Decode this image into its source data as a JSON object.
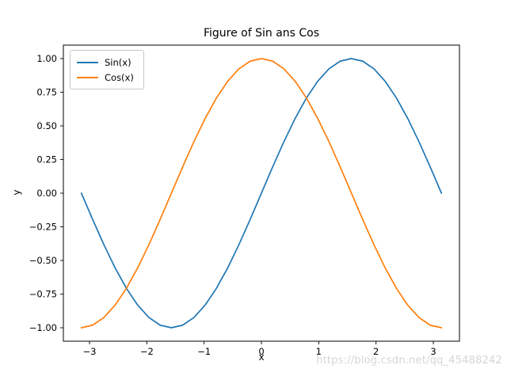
{
  "figure": {
    "title": "Figure of Sin ans Cos",
    "xlabel": "x",
    "ylabel": "y",
    "watermark": "https://blog.csdn.net/qq_45488242"
  },
  "chart_data": {
    "type": "line",
    "title": "Figure of Sin ans Cos",
    "xlabel": "x",
    "ylabel": "y",
    "xlim": [
      -3.456,
      3.456
    ],
    "ylim": [
      -1.1,
      1.1
    ],
    "x_ticks": [
      -3,
      -2,
      -1,
      0,
      1,
      2,
      3
    ],
    "y_ticks": [
      -1.0,
      -0.75,
      -0.5,
      -0.25,
      0.0,
      0.25,
      0.5,
      0.75,
      1.0
    ],
    "grid": false,
    "legend_position": "upper left",
    "x": [
      -3.1416,
      -2.9452,
      -2.7489,
      -2.5525,
      -2.3562,
      -2.1598,
      -1.9635,
      -1.7671,
      -1.5708,
      -1.3744,
      -1.1781,
      -0.9817,
      -0.7854,
      -0.589,
      -0.3927,
      -0.1963,
      0,
      0.1963,
      0.3927,
      0.589,
      0.7854,
      0.9817,
      1.1781,
      1.3744,
      1.5708,
      1.7671,
      1.9635,
      2.1598,
      2.3562,
      2.5525,
      2.7489,
      2.9452,
      3.1416
    ],
    "series": [
      {
        "name": "Sin(x)",
        "color": "#1f77b4",
        "values": [
          0,
          -0.1951,
          -0.3827,
          -0.5556,
          -0.7071,
          -0.8315,
          -0.9239,
          -0.9808,
          -1,
          -0.9808,
          -0.9239,
          -0.8315,
          -0.7071,
          -0.5556,
          -0.3827,
          -0.1951,
          0,
          0.1951,
          0.3827,
          0.5556,
          0.7071,
          0.8315,
          0.9239,
          0.9808,
          1,
          0.9808,
          0.9239,
          0.8315,
          0.7071,
          0.5556,
          0.3827,
          0.1951,
          0
        ]
      },
      {
        "name": "Cos(x)",
        "color": "#ff7f0e",
        "values": [
          -1,
          -0.9808,
          -0.9239,
          -0.8315,
          -0.7071,
          -0.5556,
          -0.3827,
          -0.1951,
          0,
          0.1951,
          0.3827,
          0.5556,
          0.7071,
          0.8315,
          0.9239,
          0.9808,
          1,
          0.9808,
          0.9239,
          0.8315,
          0.7071,
          0.5556,
          0.3827,
          0.1951,
          0,
          -0.1951,
          -0.3827,
          -0.5556,
          -0.7071,
          -0.8315,
          -0.9239,
          -0.9808,
          -1
        ]
      }
    ]
  }
}
